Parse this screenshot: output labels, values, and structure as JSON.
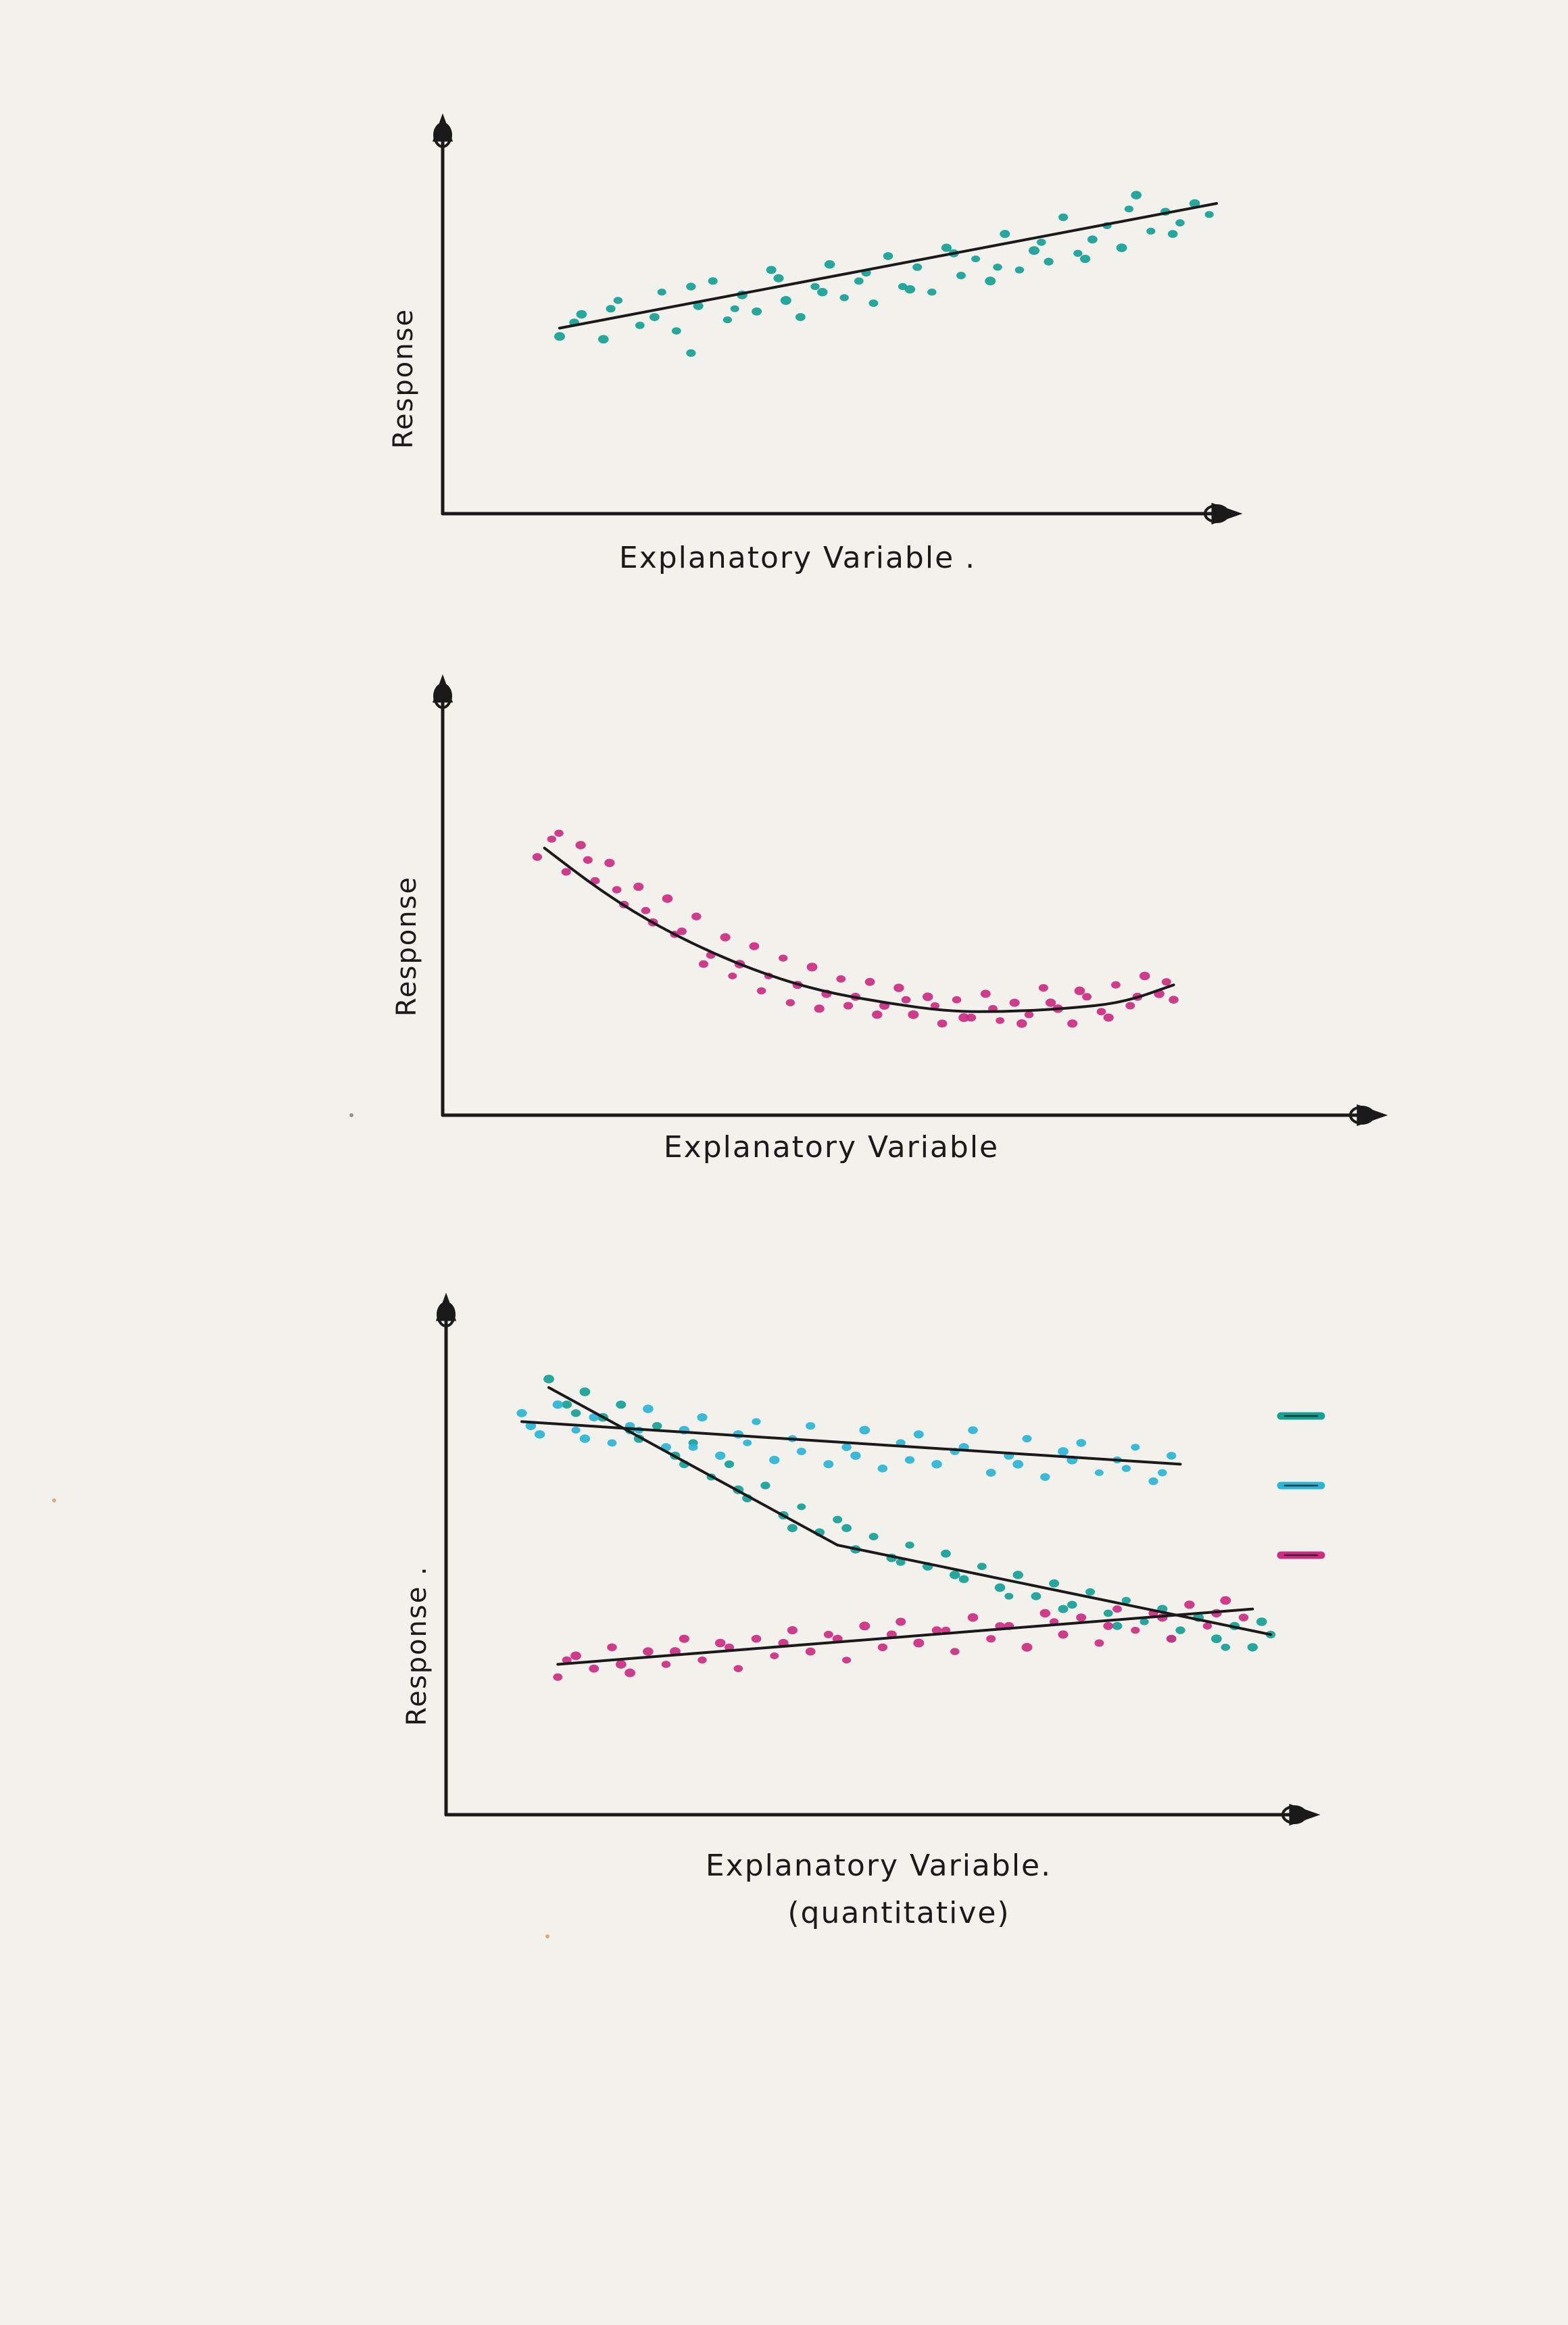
{
  "colors": {
    "ink": "#1a1a1a",
    "paper": "#f3f1ec",
    "teal": "#13a196",
    "sky": "#2bb5d6",
    "magenta": "#cc2d82"
  },
  "chart_data": [
    {
      "type": "scatter",
      "title": "",
      "xlabel": "Explanatory Variable .",
      "ylabel": "Response",
      "grid": false,
      "series": [
        {
          "color": "#13a196",
          "trend": {
            "x": [
              0.1,
              1.0
            ],
            "y": [
              0.45,
              0.9
            ]
          },
          "points": {
            "x": [
              0.1,
              0.13,
              0.16,
              0.18,
              0.21,
              0.24,
              0.26,
              0.29,
              0.31,
              0.33,
              0.35,
              0.37,
              0.39,
              0.41,
              0.43,
              0.45,
              0.47,
              0.49,
              0.51,
              0.53,
              0.55,
              0.57,
              0.59,
              0.61,
              0.63,
              0.65,
              0.67,
              0.69,
              0.71,
              0.73,
              0.75,
              0.77,
              0.79,
              0.81,
              0.83,
              0.85,
              0.87,
              0.89,
              0.91,
              0.93,
              0.95,
              0.97,
              0.99,
              0.12,
              0.17,
              0.23,
              0.28,
              0.34,
              0.4,
              0.46,
              0.52,
              0.58,
              0.64,
              0.7,
              0.76,
              0.82,
              0.88,
              0.94,
              0.28
            ],
            "y": [
              0.42,
              0.5,
              0.41,
              0.55,
              0.46,
              0.58,
              0.44,
              0.53,
              0.62,
              0.48,
              0.57,
              0.51,
              0.66,
              0.55,
              0.49,
              0.6,
              0.68,
              0.56,
              0.62,
              0.54,
              0.71,
              0.6,
              0.67,
              0.58,
              0.74,
              0.64,
              0.7,
              0.62,
              0.79,
              0.66,
              0.73,
              0.69,
              0.85,
              0.72,
              0.77,
              0.82,
              0.74,
              0.93,
              0.8,
              0.87,
              0.83,
              0.9,
              0.86,
              0.47,
              0.52,
              0.49,
              0.6,
              0.52,
              0.63,
              0.58,
              0.65,
              0.59,
              0.72,
              0.67,
              0.76,
              0.7,
              0.88,
              0.79,
              0.36
            ]
          }
        }
      ]
    },
    {
      "type": "scatter",
      "title": "",
      "xlabel": "Explanatory Variable",
      "ylabel": "Response",
      "grid": false,
      "series": [
        {
          "color": "#cc2d82",
          "trend": {
            "x": [
              0.08,
              0.15,
              0.22,
              0.3,
              0.38,
              0.46,
              0.55,
              0.64,
              0.72,
              0.8,
              0.88,
              0.95
            ],
            "y": [
              0.83,
              0.7,
              0.59,
              0.49,
              0.41,
              0.35,
              0.31,
              0.28,
              0.28,
              0.29,
              0.31,
              0.37
            ]
          },
          "points": {
            "x": [
              0.07,
              0.09,
              0.11,
              0.13,
              0.15,
              0.17,
              0.19,
              0.21,
              0.23,
              0.25,
              0.27,
              0.29,
              0.31,
              0.33,
              0.35,
              0.37,
              0.39,
              0.41,
              0.43,
              0.45,
              0.47,
              0.49,
              0.51,
              0.53,
              0.55,
              0.57,
              0.59,
              0.61,
              0.63,
              0.65,
              0.67,
              0.69,
              0.71,
              0.73,
              0.75,
              0.77,
              0.79,
              0.81,
              0.83,
              0.85,
              0.87,
              0.89,
              0.91,
              0.93,
              0.95,
              0.1,
              0.14,
              0.18,
              0.22,
              0.26,
              0.3,
              0.34,
              0.38,
              0.42,
              0.46,
              0.5,
              0.54,
              0.58,
              0.62,
              0.66,
              0.7,
              0.74,
              0.78,
              0.82,
              0.86,
              0.9,
              0.94
            ],
            "y": [
              0.8,
              0.86,
              0.75,
              0.84,
              0.72,
              0.78,
              0.64,
              0.7,
              0.58,
              0.66,
              0.55,
              0.6,
              0.47,
              0.53,
              0.44,
              0.5,
              0.4,
              0.46,
              0.37,
              0.43,
              0.34,
              0.39,
              0.33,
              0.38,
              0.3,
              0.36,
              0.27,
              0.33,
              0.24,
              0.32,
              0.26,
              0.34,
              0.25,
              0.31,
              0.27,
              0.36,
              0.29,
              0.24,
              0.33,
              0.28,
              0.37,
              0.3,
              0.4,
              0.34,
              0.32,
              0.88,
              0.79,
              0.69,
              0.62,
              0.54,
              0.44,
              0.4,
              0.35,
              0.31,
              0.29,
              0.3,
              0.27,
              0.32,
              0.3,
              0.26,
              0.29,
              0.24,
              0.31,
              0.35,
              0.26,
              0.33,
              0.38
            ]
          }
        }
      ]
    },
    {
      "type": "scatter",
      "title": "",
      "xlabel": "Explanatory Variable. (quantitative)",
      "ylabel": "Response .",
      "legend": "right",
      "grid": false,
      "series": [
        {
          "color": "#13a196",
          "trend": {
            "x": [
              0.2,
              0.52,
              1.0
            ],
            "y": [
              0.9,
              0.53,
              0.32
            ]
          },
          "points": {
            "x": [
              0.2,
              0.22,
              0.24,
              0.26,
              0.28,
              0.3,
              0.32,
              0.34,
              0.36,
              0.38,
              0.4,
              0.42,
              0.44,
              0.46,
              0.48,
              0.5,
              0.52,
              0.54,
              0.56,
              0.58,
              0.6,
              0.62,
              0.64,
              0.66,
              0.68,
              0.7,
              0.72,
              0.74,
              0.76,
              0.78,
              0.8,
              0.82,
              0.84,
              0.86,
              0.88,
              0.9,
              0.92,
              0.94,
              0.96,
              0.98,
              1.0,
              0.23,
              0.29,
              0.35,
              0.41,
              0.47,
              0.53,
              0.59,
              0.65,
              0.71,
              0.77,
              0.83,
              0.89,
              0.95,
              0.99
            ],
            "y": [
              0.92,
              0.86,
              0.89,
              0.83,
              0.86,
              0.78,
              0.81,
              0.74,
              0.77,
              0.69,
              0.72,
              0.64,
              0.67,
              0.6,
              0.62,
              0.56,
              0.59,
              0.52,
              0.55,
              0.5,
              0.53,
              0.48,
              0.51,
              0.45,
              0.48,
              0.43,
              0.46,
              0.41,
              0.44,
              0.39,
              0.42,
              0.37,
              0.4,
              0.35,
              0.38,
              0.33,
              0.36,
              0.31,
              0.34,
              0.29,
              0.32,
              0.84,
              0.8,
              0.72,
              0.66,
              0.57,
              0.57,
              0.49,
              0.46,
              0.41,
              0.38,
              0.34,
              0.31,
              0.29,
              0.35
            ]
          }
        },
        {
          "color": "#2bb5d6",
          "trend": {
            "x": [
              0.17,
              0.9
            ],
            "y": [
              0.82,
              0.72
            ]
          },
          "points": {
            "x": [
              0.17,
              0.19,
              0.21,
              0.23,
              0.25,
              0.27,
              0.29,
              0.31,
              0.33,
              0.35,
              0.37,
              0.39,
              0.41,
              0.43,
              0.45,
              0.47,
              0.49,
              0.51,
              0.53,
              0.55,
              0.57,
              0.59,
              0.61,
              0.63,
              0.65,
              0.67,
              0.69,
              0.71,
              0.73,
              0.75,
              0.77,
              0.79,
              0.81,
              0.83,
              0.85,
              0.87,
              0.89,
              0.18,
              0.24,
              0.3,
              0.36,
              0.42,
              0.48,
              0.54,
              0.6,
              0.66,
              0.72,
              0.78,
              0.84,
              0.88
            ],
            "y": [
              0.84,
              0.79,
              0.86,
              0.8,
              0.83,
              0.77,
              0.81,
              0.85,
              0.76,
              0.8,
              0.83,
              0.74,
              0.79,
              0.82,
              0.73,
              0.78,
              0.81,
              0.72,
              0.76,
              0.8,
              0.71,
              0.77,
              0.79,
              0.72,
              0.75,
              0.8,
              0.7,
              0.74,
              0.78,
              0.69,
              0.75,
              0.77,
              0.7,
              0.73,
              0.76,
              0.68,
              0.74,
              0.81,
              0.78,
              0.8,
              0.76,
              0.77,
              0.75,
              0.74,
              0.73,
              0.76,
              0.72,
              0.73,
              0.71,
              0.7
            ]
          }
        },
        {
          "color": "#cc2d82",
          "trend": {
            "x": [
              0.21,
              0.98
            ],
            "y": [
              0.25,
              0.38
            ]
          },
          "points": {
            "x": [
              0.21,
              0.23,
              0.25,
              0.27,
              0.29,
              0.31,
              0.33,
              0.35,
              0.37,
              0.39,
              0.41,
              0.43,
              0.45,
              0.47,
              0.49,
              0.51,
              0.53,
              0.55,
              0.57,
              0.59,
              0.61,
              0.63,
              0.65,
              0.67,
              0.69,
              0.71,
              0.73,
              0.75,
              0.77,
              0.79,
              0.81,
              0.83,
              0.85,
              0.87,
              0.89,
              0.91,
              0.93,
              0.95,
              0.97,
              0.22,
              0.28,
              0.34,
              0.4,
              0.46,
              0.52,
              0.58,
              0.64,
              0.7,
              0.76,
              0.82,
              0.88,
              0.94
            ],
            "y": [
              0.22,
              0.27,
              0.24,
              0.29,
              0.23,
              0.28,
              0.25,
              0.31,
              0.26,
              0.3,
              0.24,
              0.31,
              0.27,
              0.33,
              0.28,
              0.32,
              0.26,
              0.34,
              0.29,
              0.35,
              0.3,
              0.33,
              0.28,
              0.36,
              0.31,
              0.34,
              0.29,
              0.37,
              0.32,
              0.36,
              0.3,
              0.38,
              0.33,
              0.37,
              0.31,
              0.39,
              0.34,
              0.4,
              0.36,
              0.26,
              0.25,
              0.28,
              0.29,
              0.3,
              0.31,
              0.32,
              0.33,
              0.34,
              0.35,
              0.34,
              0.36,
              0.37
            ]
          }
        }
      ]
    }
  ]
}
